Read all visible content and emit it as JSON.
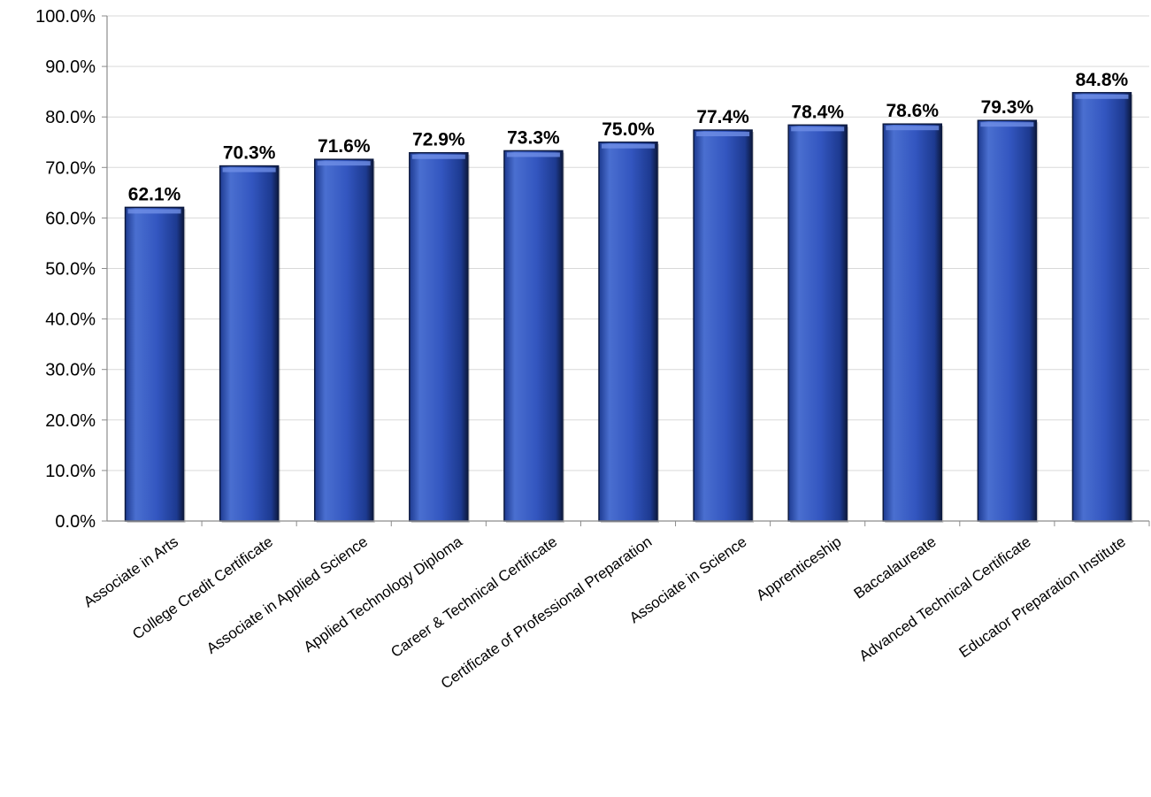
{
  "chart_data": {
    "type": "bar",
    "title": "",
    "xlabel": "",
    "ylabel": "",
    "categories": [
      "Associate in Arts",
      "College Credit Certificate",
      "Associate in Applied Science",
      "Applied Technology Diploma",
      "Career & Technical Certificate",
      "Certificate of Professional Preparation",
      "Associate in Science",
      "Apprenticeship",
      "Baccalaureate",
      "Advanced Technical Certificate",
      "Educator Preparation Institute"
    ],
    "values": [
      62.1,
      70.3,
      71.6,
      72.9,
      73.3,
      75.0,
      77.4,
      78.4,
      78.6,
      79.3,
      84.8
    ],
    "value_labels": [
      "62.1%",
      "70.3%",
      "71.6%",
      "72.9%",
      "73.3%",
      "75.0%",
      "77.4%",
      "78.4%",
      "78.6%",
      "79.3%",
      "84.8%"
    ],
    "ylim": [
      0,
      100
    ],
    "y_ticks": [
      0,
      10,
      20,
      30,
      40,
      50,
      60,
      70,
      80,
      90,
      100
    ],
    "y_tick_labels": [
      "0.0%",
      "10.0%",
      "20.0%",
      "30.0%",
      "40.0%",
      "50.0%",
      "60.0%",
      "70.0%",
      "80.0%",
      "90.0%",
      "100.0%"
    ],
    "grid": true,
    "legend": "none",
    "colors": {
      "bar_light": "#4a6fd0",
      "bar_mid": "#3356c0",
      "bar_dark": "#1d3a90",
      "bar_edge": "#0d1a40"
    }
  }
}
